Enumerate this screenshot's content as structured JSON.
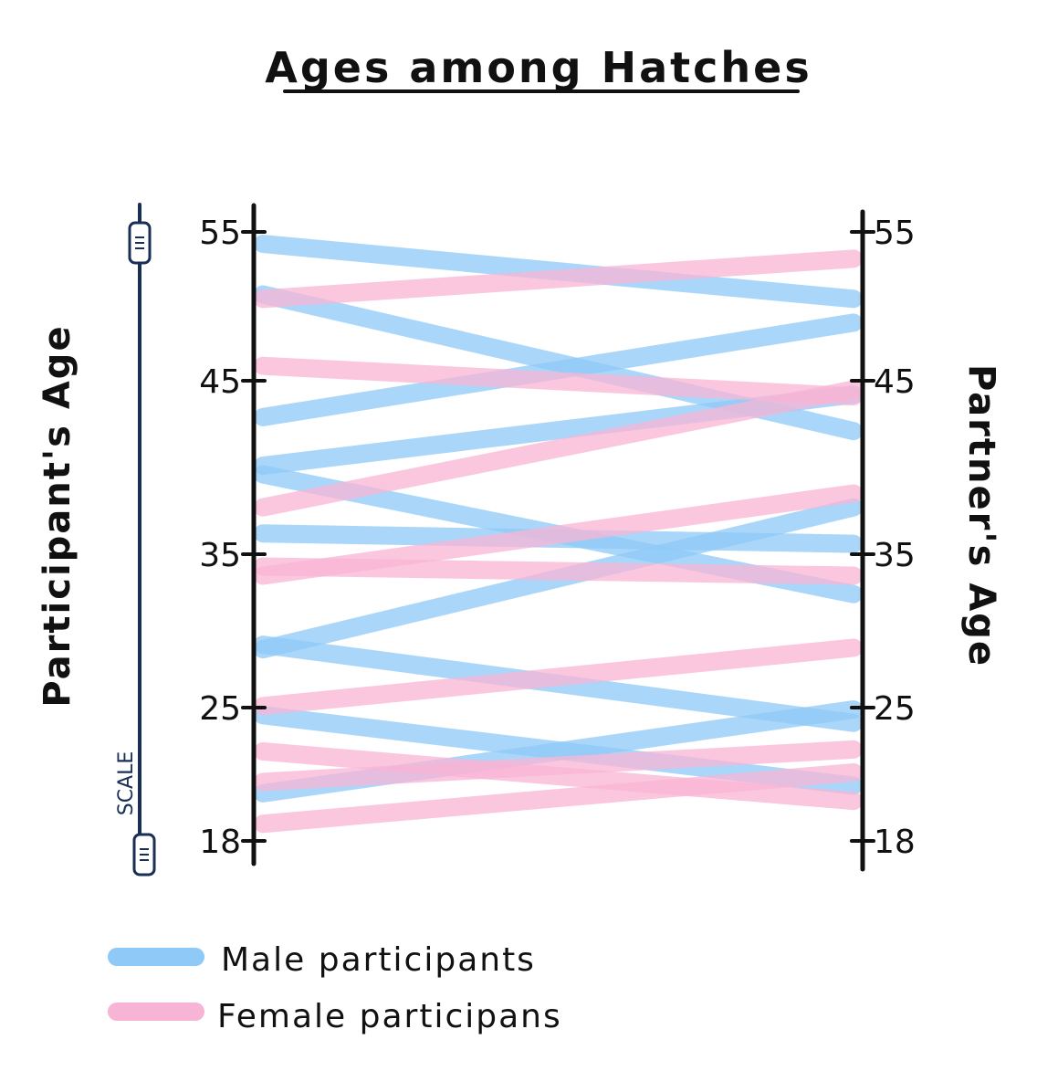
{
  "chart_data": {
    "type": "slopegraph",
    "title": "Ages among Hatches",
    "left_axis_label": "Participant's Age",
    "right_axis_label": "Partner's Age",
    "left_ticks": [
      "55",
      "45",
      "35",
      "25",
      "18"
    ],
    "right_ticks": [
      "55",
      "45",
      "35",
      "25",
      "18"
    ],
    "ylim": [
      18,
      55
    ],
    "scale_label": "SCALE",
    "series": [
      {
        "name": "Male participants",
        "color": "#8ec9f7",
        "pairs": [
          [
            54.2,
            50.5
          ],
          [
            50.8,
            42.1
          ],
          [
            42.9,
            48.9
          ],
          [
            40.1,
            44.2
          ],
          [
            39.6,
            32.4
          ],
          [
            36.2,
            35.6
          ],
          [
            28.8,
            37.7
          ],
          [
            29.1,
            24.2
          ],
          [
            24.6,
            20.9
          ],
          [
            20.5,
            24.9
          ]
        ]
      },
      {
        "name": "Female participans",
        "color": "#f8b4d4",
        "pairs": [
          [
            50.5,
            53.2
          ],
          [
            46.0,
            44.1
          ],
          [
            37.7,
            44.5
          ],
          [
            34.2,
            33.6
          ],
          [
            33.6,
            38.5
          ],
          [
            25.1,
            28.9
          ],
          [
            22.7,
            20.1
          ],
          [
            21.1,
            22.8
          ],
          [
            18.9,
            21.6
          ]
        ]
      }
    ]
  }
}
